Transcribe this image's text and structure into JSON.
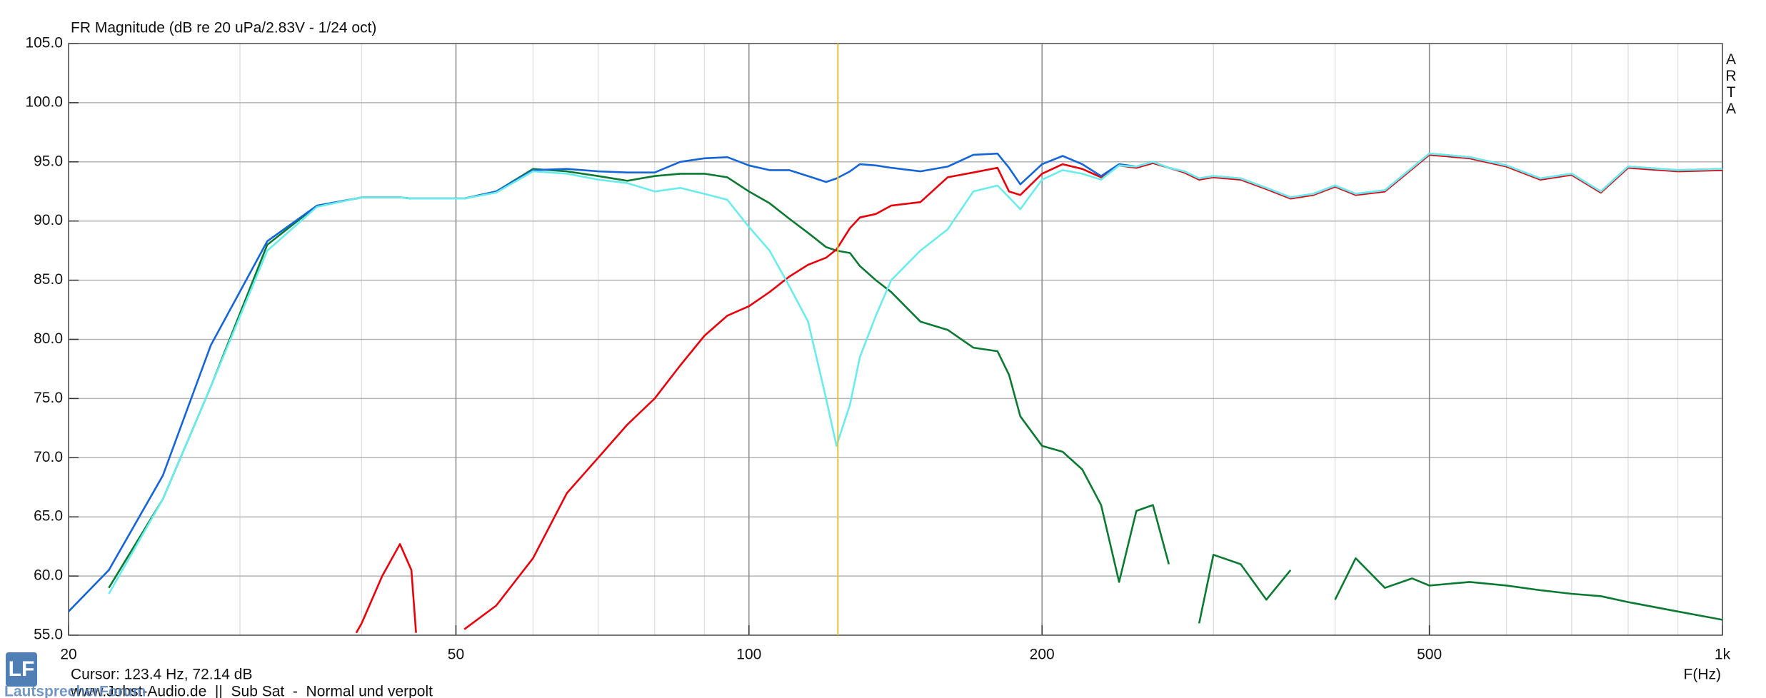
{
  "chart_data": {
    "type": "line",
    "title": "FR Magnitude (dB re 20 uPa/2.83V - 1/24 oct)",
    "side_label": "ARTA",
    "x_label": "F(Hz)",
    "cursor_label": "Cursor: 123.4 Hz, 72.14 dB",
    "cursor_x": 123.4,
    "cursor_color": "#e3c23c",
    "footer": "www.Jobst-Audio.de  ||  Sub Sat  -  Normal und verpolt",
    "logo": {
      "mark": "LF",
      "text": "LautsprecherForum"
    },
    "log_x": true,
    "grid": true,
    "xlim": [
      20,
      1000
    ],
    "xticks": [
      20,
      50,
      100,
      200,
      500,
      {
        "value": 1000,
        "label": "1k"
      }
    ],
    "ylim": [
      55,
      105
    ],
    "yticks": [
      {
        "value": 55,
        "label": "55.0"
      },
      {
        "value": 60,
        "label": "60.0"
      },
      {
        "value": 65,
        "label": "65.0"
      },
      {
        "value": 70,
        "label": "70.0"
      },
      {
        "value": 75,
        "label": "75.0"
      },
      {
        "value": 80,
        "label": "80.0"
      },
      {
        "value": 85,
        "label": "85.0"
      },
      {
        "value": 90,
        "label": "90.0"
      },
      {
        "value": 95,
        "label": "95.0"
      },
      {
        "value": 100,
        "label": "100.0"
      },
      {
        "value": 105,
        "label": "105.0"
      }
    ],
    "x": [
      20,
      22,
      25,
      28,
      32,
      36,
      39.5,
      40,
      42,
      43.8,
      45,
      45.5,
      50,
      51,
      55,
      60,
      65,
      70,
      75,
      80,
      85,
      90,
      95,
      100,
      105,
      110,
      115,
      120,
      123,
      127,
      130,
      135,
      140,
      150,
      160,
      170,
      180,
      185,
      190,
      200,
      210,
      220,
      230,
      240,
      250,
      260,
      270,
      280,
      290,
      300,
      320,
      340,
      360,
      380,
      400,
      420,
      450,
      480,
      500,
      550,
      600,
      650,
      700,
      750,
      800,
      900,
      1000
    ],
    "series": [
      {
        "color": "#0a7a32",
        "values": [
          null,
          59,
          66.5,
          76,
          88,
          91.3,
          91.9,
          92,
          92,
          92,
          91.9,
          91.9,
          91.9,
          91.9,
          92.5,
          94.4,
          94.2,
          93.8,
          93.4,
          93.8,
          94.0,
          94.0,
          93.7,
          92.5,
          91.5,
          90.2,
          89.0,
          87.8,
          87.5,
          87.3,
          86.2,
          85.0,
          84.0,
          81.5,
          80.8,
          79.3,
          79.0,
          77.0,
          73.5,
          71.0,
          70.5,
          69.0,
          66.0,
          59.5,
          65.5,
          66.0,
          61.0,
          null,
          56.0,
          61.8,
          61.0,
          58.0,
          60.5,
          null,
          58.0,
          61.5,
          59.0,
          59.8,
          59.2,
          59.5,
          59.2,
          58.8,
          58.5,
          58.3,
          57.8,
          57.0,
          56.3
        ]
      },
      {
        "color": "#e8000b",
        "values": [
          null,
          null,
          null,
          null,
          null,
          null,
          55.2,
          56.0,
          60.0,
          62.7,
          60.5,
          55.2,
          null,
          55.5,
          57.5,
          61.5,
          67.0,
          70.0,
          72.8,
          75.0,
          77.8,
          80.3,
          82.0,
          82.8,
          84.0,
          85.3,
          86.3,
          86.9,
          87.6,
          89.4,
          90.3,
          90.6,
          91.3,
          91.6,
          93.7,
          94.1,
          94.5,
          92.5,
          92.2,
          94.0,
          94.8,
          94.4,
          93.7,
          94.7,
          94.5,
          94.9,
          94.5,
          94.1,
          93.5,
          93.7,
          93.5,
          92.7,
          91.9,
          92.2,
          92.9,
          92.2,
          92.5,
          94.4,
          95.6,
          95.3,
          94.6,
          93.5,
          93.9,
          92.4,
          94.5,
          94.2,
          94.3
        ]
      },
      {
        "color": "#1565d8",
        "values": [
          57.0,
          60.5,
          68.5,
          79.5,
          88.3,
          91.3,
          91.9,
          92.0,
          92.0,
          92.0,
          91.9,
          91.9,
          91.9,
          91.9,
          92.5,
          94.3,
          94.4,
          94.2,
          94.1,
          94.1,
          95.0,
          95.3,
          95.4,
          94.7,
          94.3,
          94.3,
          93.8,
          93.3,
          93.6,
          94.2,
          94.8,
          94.7,
          94.5,
          94.2,
          94.6,
          95.6,
          95.7,
          94.5,
          93.1,
          94.8,
          95.5,
          94.8,
          93.8,
          94.8,
          94.6,
          95.0,
          94.5,
          94.2,
          93.6,
          93.8,
          93.6,
          92.8,
          92.0,
          92.3,
          93.0,
          92.3,
          92.6,
          94.5,
          95.7,
          95.4,
          94.7,
          93.6,
          94.0,
          92.5,
          94.6,
          94.3,
          94.4
        ]
      },
      {
        "color": "#6aecec",
        "values": [
          null,
          58.5,
          66.5,
          76,
          87.5,
          91.2,
          91.9,
          92.0,
          92.0,
          92.0,
          91.9,
          91.9,
          91.9,
          91.9,
          92.4,
          94.2,
          94.0,
          93.5,
          93.2,
          92.5,
          92.8,
          92.3,
          91.8,
          89.5,
          87.5,
          84.5,
          81.5,
          75,
          71,
          74.5,
          78.5,
          82,
          85,
          87.5,
          89.3,
          92.5,
          93,
          92,
          91,
          93.5,
          94.3,
          94,
          93.5,
          94.7,
          94.6,
          95.0,
          94.5,
          94.2,
          93.6,
          93.8,
          93.6,
          92.8,
          92.0,
          92.3,
          93.0,
          92.3,
          92.6,
          94.5,
          95.7,
          95.4,
          94.7,
          93.6,
          94.0,
          92.5,
          94.6,
          94.3,
          94.4
        ]
      }
    ]
  }
}
